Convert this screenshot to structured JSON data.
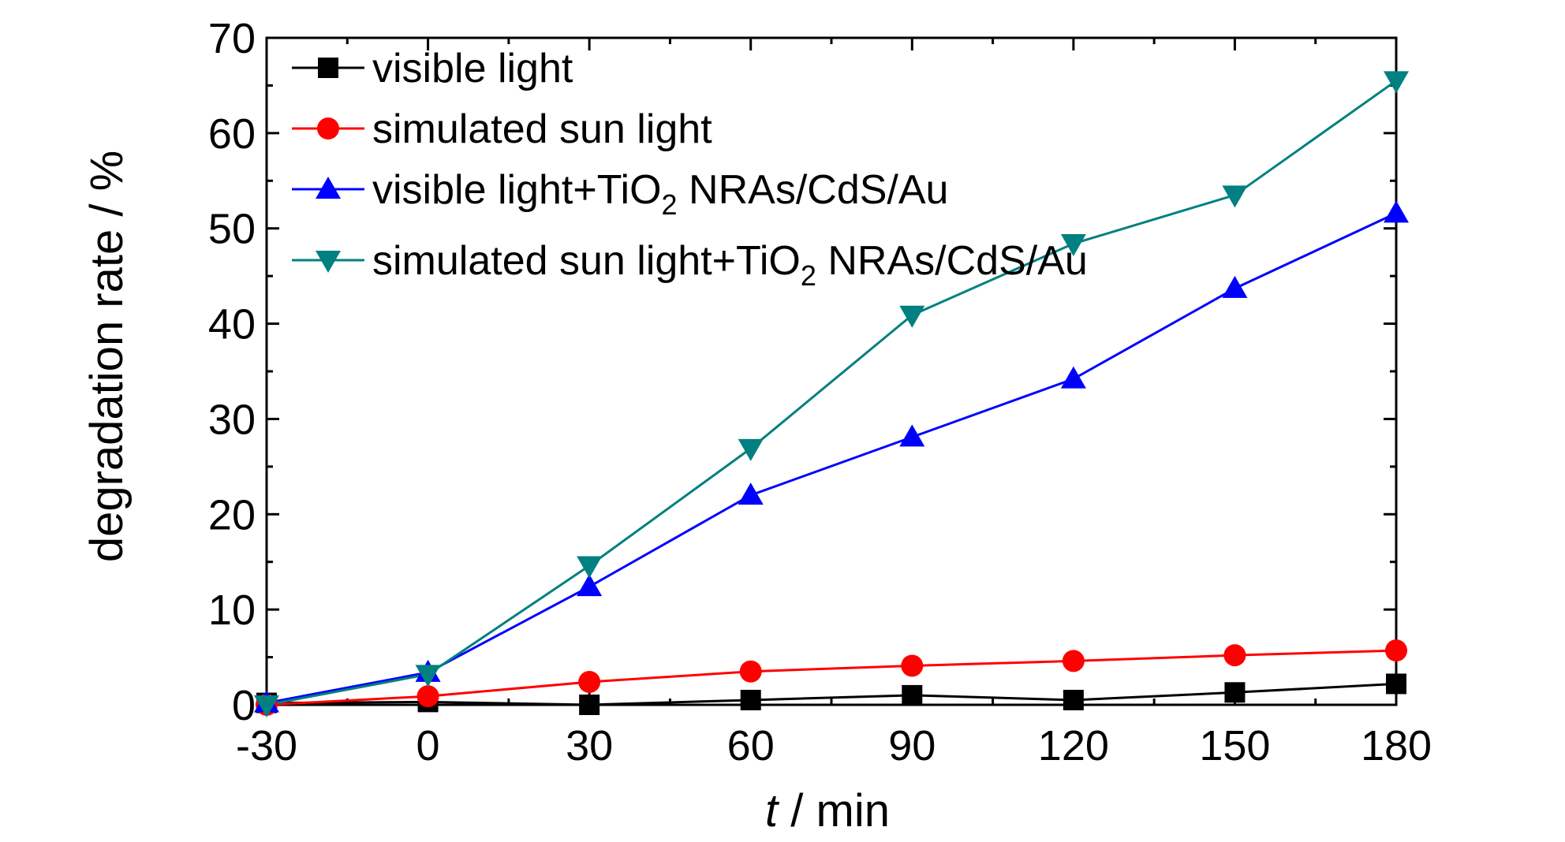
{
  "chart_data": {
    "type": "line",
    "xlabel_italic": "t",
    "xlabel_rest": " / min",
    "ylabel": "degradation rate / %",
    "x": [
      -30,
      0,
      30,
      60,
      90,
      120,
      150,
      180
    ],
    "xlim": [
      -30,
      180
    ],
    "ylim": [
      0,
      70
    ],
    "xticks": [
      "-30",
      "0",
      "30",
      "60",
      "90",
      "120",
      "150",
      "180"
    ],
    "yticks": [
      "0",
      "10",
      "20",
      "30",
      "40",
      "50",
      "60",
      "70"
    ],
    "grid": false,
    "legend_position": "top-left",
    "series": [
      {
        "name_parts": [
          "visible light"
        ],
        "color": "#000000",
        "marker": "square",
        "values": [
          0.2,
          0.3,
          0.0,
          0.5,
          1.0,
          0.5,
          1.3,
          2.2
        ]
      },
      {
        "name_parts": [
          "simulated sun light"
        ],
        "color": "#ff0000",
        "marker": "circle",
        "values": [
          0.0,
          0.9,
          2.4,
          3.5,
          4.1,
          4.6,
          5.2,
          5.7
        ]
      },
      {
        "name_parts": [
          "visible light+TiO",
          "2",
          " NRAs/CdS/Au"
        ],
        "color": "#0000ff",
        "marker": "triangle-up",
        "values": [
          0.2,
          3.4,
          12.4,
          22.0,
          28.1,
          34.2,
          43.7,
          51.6
        ]
      },
      {
        "name_parts": [
          "simulated sun light+TiO",
          "2",
          " NRAs/CdS/Au"
        ],
        "color": "#008080",
        "marker": "triangle-down",
        "values": [
          0.0,
          3.2,
          14.6,
          26.9,
          40.9,
          48.4,
          53.5,
          65.5
        ]
      }
    ]
  }
}
